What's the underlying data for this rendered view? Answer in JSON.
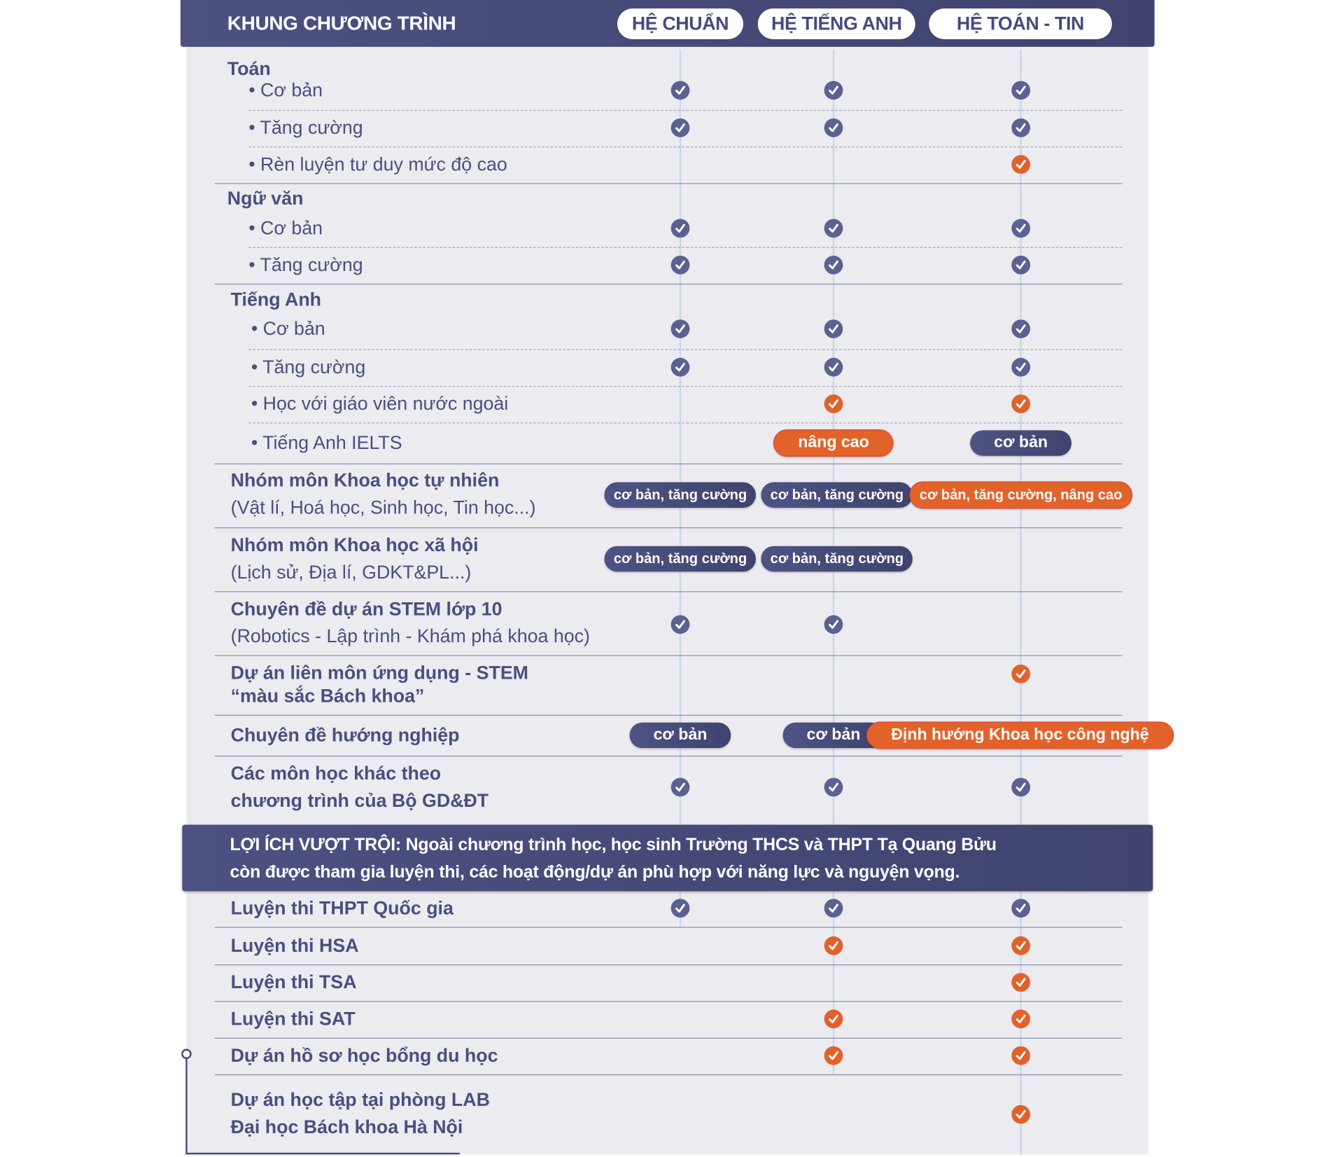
{
  "header": {
    "title": "KHUNG CHƯƠNG TRÌNH",
    "columns": [
      "HỆ CHUẨN",
      "HỆ TIẾNG ANH",
      "HỆ TOÁN - TIN"
    ]
  },
  "colors": {
    "primary": "#464b7c",
    "accent": "#e0622a",
    "panel": "#ebebf0"
  },
  "curriculum": [
    {
      "title": "Toán",
      "items": [
        {
          "label": "• Cơ bản",
          "cells": [
            {
              "type": "check"
            },
            {
              "type": "check"
            },
            {
              "type": "check"
            }
          ]
        },
        {
          "label": "• Tăng cường",
          "cells": [
            {
              "type": "check"
            },
            {
              "type": "check"
            },
            {
              "type": "check"
            }
          ]
        },
        {
          "label": "• Rèn luyện tư duy mức độ cao",
          "cells": [
            null,
            null,
            {
              "type": "check",
              "highlight": true
            }
          ]
        }
      ]
    },
    {
      "title": "Ngữ văn",
      "items": [
        {
          "label": "• Cơ bản",
          "cells": [
            {
              "type": "check"
            },
            {
              "type": "check"
            },
            {
              "type": "check"
            }
          ]
        },
        {
          "label": "• Tăng cường",
          "cells": [
            {
              "type": "check"
            },
            {
              "type": "check"
            },
            {
              "type": "check"
            }
          ]
        }
      ]
    },
    {
      "title": "Tiếng Anh",
      "items": [
        {
          "label": "• Cơ bản",
          "cells": [
            {
              "type": "check"
            },
            {
              "type": "check"
            },
            {
              "type": "check"
            }
          ]
        },
        {
          "label": "• Tăng cường",
          "cells": [
            {
              "type": "check"
            },
            {
              "type": "check"
            },
            {
              "type": "check"
            }
          ]
        },
        {
          "label": "• Học với giáo viên nước ngoài",
          "cells": [
            null,
            {
              "type": "check",
              "highlight": true
            },
            {
              "type": "check",
              "highlight": true
            }
          ]
        },
        {
          "label": "• Tiếng Anh IELTS",
          "cells": [
            null,
            {
              "type": "pill",
              "text": "nâng cao",
              "highlight": true
            },
            {
              "type": "pill",
              "text": "cơ bản"
            }
          ]
        }
      ]
    },
    {
      "title": "Nhóm môn Khoa học tự nhiên",
      "subtitle": "(Vật lí, Hoá học, Sinh học, Tin học...)",
      "cells": [
        {
          "type": "pill",
          "text": "cơ bản, tăng cường"
        },
        {
          "type": "pill",
          "text": "cơ bản, tăng cường"
        },
        {
          "type": "pill",
          "text": "cơ bản, tăng cường, nâng cao",
          "highlight": true
        }
      ]
    },
    {
      "title": "Nhóm môn Khoa học xã hội",
      "subtitle": "(Lịch sử, Địa lí, GDKT&PL...)",
      "cells": [
        {
          "type": "pill",
          "text": "cơ bản, tăng cường"
        },
        {
          "type": "pill",
          "text": "cơ bản, tăng cường"
        },
        null
      ]
    },
    {
      "title": "Chuyên đề dự án STEM lớp 10",
      "subtitle": "(Robotics - Lập trình -  Khám phá khoa học)",
      "cells": [
        {
          "type": "check"
        },
        {
          "type": "check"
        },
        null
      ]
    },
    {
      "title": "Dự án liên môn ứng dụng - STEM",
      "title2": "“màu sắc Bách khoa”",
      "cells": [
        null,
        null,
        {
          "type": "check",
          "highlight": true
        }
      ]
    },
    {
      "title": "Chuyên đề hướng nghiệp",
      "cells": [
        {
          "type": "pill",
          "text": "cơ bản"
        },
        {
          "type": "pill",
          "text": "cơ bản"
        },
        {
          "type": "pill",
          "text": "Định hướng Khoa học công nghệ",
          "highlight": true
        }
      ]
    },
    {
      "title": "Các môn học khác theo",
      "title2": "chương trình của Bộ GD&ĐT",
      "cells": [
        {
          "type": "check"
        },
        {
          "type": "check"
        },
        {
          "type": "check"
        }
      ]
    }
  ],
  "benefits_banner": {
    "line1": "LỢI ÍCH VƯỢT TRỘI: Ngoài chương trình học, học sinh Trường THCS và THPT Tạ Quang Bửu",
    "line2": "còn được tham gia luyện thi, các hoạt động/dự án phù hợp với năng lực và nguyện vọng."
  },
  "benefits": [
    {
      "title": "Luyện thi THPT Quốc gia",
      "cells": [
        {
          "type": "check"
        },
        {
          "type": "check"
        },
        {
          "type": "check"
        }
      ]
    },
    {
      "title": "Luyện thi HSA",
      "cells": [
        null,
        {
          "type": "check",
          "highlight": true
        },
        {
          "type": "check",
          "highlight": true
        }
      ]
    },
    {
      "title": "Luyện thi TSA",
      "cells": [
        null,
        null,
        {
          "type": "check",
          "highlight": true
        }
      ]
    },
    {
      "title": "Luyện thi SAT",
      "cells": [
        null,
        {
          "type": "check",
          "highlight": true
        },
        {
          "type": "check",
          "highlight": true
        }
      ]
    },
    {
      "title": "Dự án hồ sơ học bổng du học",
      "cells": [
        null,
        {
          "type": "check",
          "highlight": true
        },
        {
          "type": "check",
          "highlight": true
        }
      ]
    },
    {
      "title": "Dự án học tập tại phòng LAB",
      "title2": "Đại học Bách khoa Hà Nội",
      "cells": [
        null,
        null,
        {
          "type": "check",
          "highlight": true
        }
      ]
    }
  ]
}
